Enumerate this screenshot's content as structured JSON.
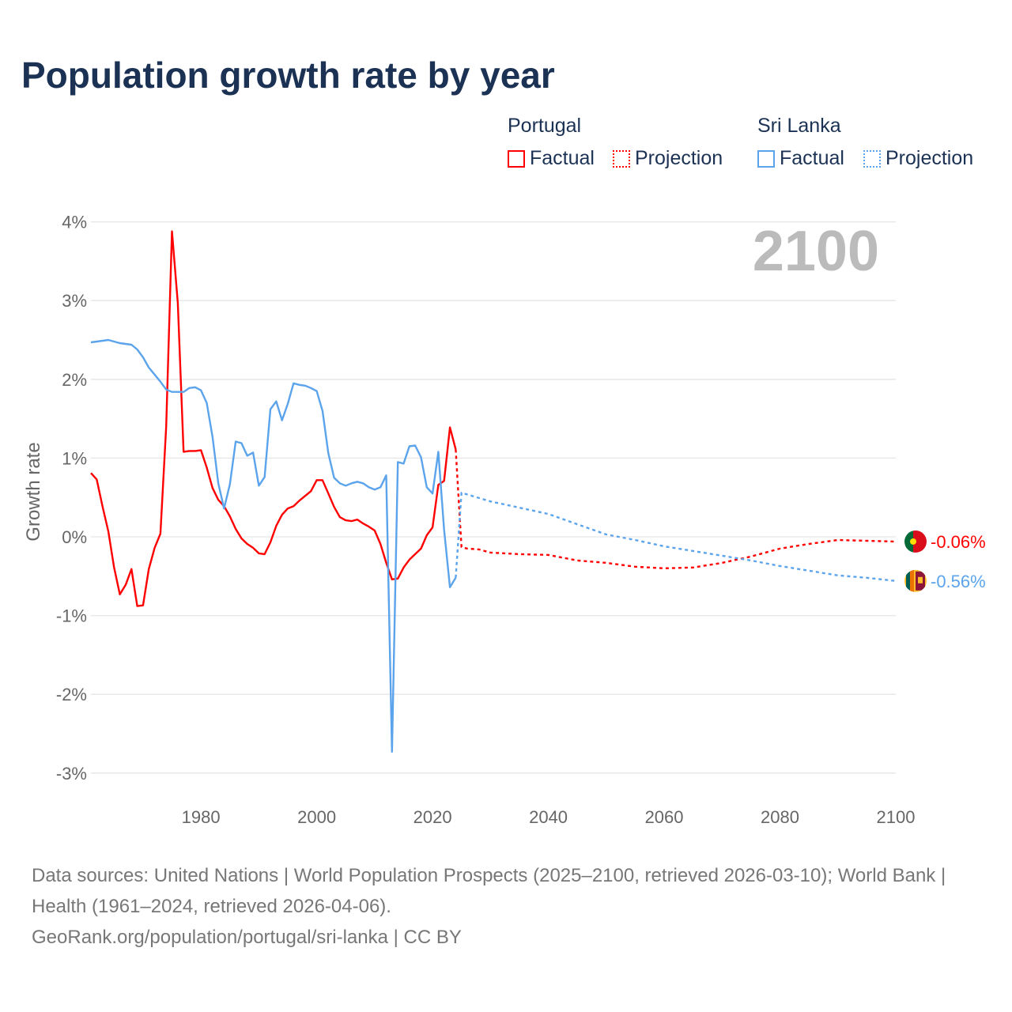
{
  "title": "Population growth rate by year",
  "legend": {
    "groups": [
      {
        "name": "Portugal",
        "factual": "Factual",
        "projection": "Projection",
        "color": "#ff0000"
      },
      {
        "name": "Sri Lanka",
        "factual": "Factual",
        "projection": "Projection",
        "color": "#5ba4ec"
      }
    ]
  },
  "year_label": "2100",
  "footer": {
    "sources": "Data sources: United Nations | World Population Prospects (2025–2100, retrieved 2026-03-10); World Bank | Health (1961–2024, retrieved 2026-04-06).",
    "credit": "GeoRank.org/population/portugal/sri-lanka | CC BY"
  },
  "chart_data": {
    "type": "line",
    "title": "Population growth rate by year",
    "xlabel": "",
    "ylabel": "Growth rate",
    "xlim": [
      1961,
      2100
    ],
    "ylim": [
      -3.3,
      4.2
    ],
    "xticks": [
      1980,
      2000,
      2020,
      2040,
      2060,
      2080,
      2100
    ],
    "yticks": [
      4,
      3,
      2,
      1,
      0,
      -1,
      -2,
      -3
    ],
    "ytick_labels": [
      "4%",
      "3%",
      "2%",
      "1%",
      "0%",
      "-1%",
      "-2%",
      "-3%"
    ],
    "grid": true,
    "series": [
      {
        "name": "Portugal Factual",
        "color": "#ff0000",
        "dashed": false,
        "x": [
          1961,
          1962,
          1963,
          1964,
          1965,
          1966,
          1967,
          1968,
          1969,
          1970,
          1971,
          1972,
          1973,
          1974,
          1975,
          1976,
          1977,
          1978,
          1979,
          1980,
          1981,
          1982,
          1983,
          1984,
          1985,
          1986,
          1987,
          1988,
          1989,
          1990,
          1991,
          1992,
          1993,
          1994,
          1995,
          1996,
          1997,
          1998,
          1999,
          2000,
          2001,
          2002,
          2003,
          2004,
          2005,
          2006,
          2007,
          2008,
          2009,
          2010,
          2011,
          2012,
          2013,
          2014,
          2015,
          2016,
          2017,
          2018,
          2019,
          2020,
          2021,
          2022,
          2023,
          2024
        ],
        "y": [
          0.81,
          0.73,
          0.39,
          0.07,
          -0.39,
          -0.73,
          -0.61,
          -0.41,
          -0.88,
          -0.87,
          -0.41,
          -0.14,
          0.04,
          1.4,
          3.88,
          2.97,
          1.08,
          1.09,
          1.09,
          1.1,
          0.88,
          0.62,
          0.47,
          0.39,
          0.26,
          0.1,
          -0.02,
          -0.09,
          -0.14,
          -0.21,
          -0.22,
          -0.07,
          0.14,
          0.28,
          0.36,
          0.39,
          0.46,
          0.52,
          0.58,
          0.72,
          0.72,
          0.55,
          0.38,
          0.25,
          0.21,
          0.2,
          0.22,
          0.17,
          0.13,
          0.08,
          -0.09,
          -0.33,
          -0.54,
          -0.53,
          -0.39,
          -0.29,
          -0.22,
          -0.15,
          0.02,
          0.12,
          0.66,
          0.71,
          1.39,
          1.11
        ]
      },
      {
        "name": "Portugal Projection",
        "color": "#ff0000",
        "dashed": true,
        "x": [
          2024,
          2025,
          2026,
          2028,
          2030,
          2035,
          2040,
          2045,
          2050,
          2055,
          2060,
          2065,
          2070,
          2075,
          2080,
          2085,
          2090,
          2095,
          2100
        ],
        "y": [
          1.11,
          -0.13,
          -0.15,
          -0.16,
          -0.2,
          -0.22,
          -0.23,
          -0.3,
          -0.33,
          -0.38,
          -0.4,
          -0.39,
          -0.33,
          -0.25,
          -0.15,
          -0.09,
          -0.04,
          -0.05,
          -0.06
        ]
      },
      {
        "name": "Sri Lanka Factual",
        "color": "#5ba4ec",
        "dashed": false,
        "x": [
          1961,
          1964,
          1966,
          1968,
          1969,
          1970,
          1971,
          1972,
          1973,
          1974,
          1975,
          1976,
          1977,
          1978,
          1979,
          1980,
          1981,
          1982,
          1983,
          1984,
          1985,
          1986,
          1987,
          1988,
          1989,
          1990,
          1991,
          1992,
          1993,
          1994,
          1995,
          1996,
          1997,
          1998,
          1999,
          2000,
          2001,
          2002,
          2003,
          2004,
          2005,
          2006,
          2007,
          2008,
          2009,
          2010,
          2011,
          2012,
          2013,
          2014,
          2015,
          2016,
          2017,
          2018,
          2019,
          2020,
          2021,
          2022,
          2023,
          2024
        ],
        "y": [
          2.47,
          2.5,
          2.46,
          2.44,
          2.38,
          2.28,
          2.15,
          2.06,
          1.97,
          1.87,
          1.84,
          1.84,
          1.84,
          1.89,
          1.9,
          1.86,
          1.7,
          1.27,
          0.68,
          0.36,
          0.67,
          1.21,
          1.19,
          1.03,
          1.07,
          0.65,
          0.76,
          1.62,
          1.72,
          1.48,
          1.69,
          1.95,
          1.93,
          1.92,
          1.89,
          1.85,
          1.6,
          1.06,
          0.75,
          0.68,
          0.65,
          0.68,
          0.7,
          0.68,
          0.63,
          0.6,
          0.63,
          0.78,
          -2.73,
          0.95,
          0.93,
          1.15,
          1.16,
          1.01,
          0.63,
          0.55,
          1.08,
          0.09,
          -0.64,
          -0.52
        ]
      },
      {
        "name": "Sri Lanka Projection",
        "color": "#5ba4ec",
        "dashed": true,
        "x": [
          2024,
          2025,
          2030,
          2035,
          2040,
          2045,
          2050,
          2055,
          2060,
          2065,
          2070,
          2075,
          2080,
          2085,
          2090,
          2095,
          2100
        ],
        "y": [
          -0.52,
          0.56,
          0.45,
          0.37,
          0.29,
          0.16,
          0.03,
          -0.04,
          -0.12,
          -0.18,
          -0.24,
          -0.3,
          -0.37,
          -0.43,
          -0.49,
          -0.52,
          -0.56
        ]
      }
    ],
    "end_labels": [
      {
        "country": "Portugal",
        "value": -0.06,
        "text": "-0.06%",
        "color": "#ff0000"
      },
      {
        "country": "Sri Lanka",
        "value": -0.56,
        "text": "-0.56%",
        "color": "#5ba4ec"
      }
    ]
  }
}
